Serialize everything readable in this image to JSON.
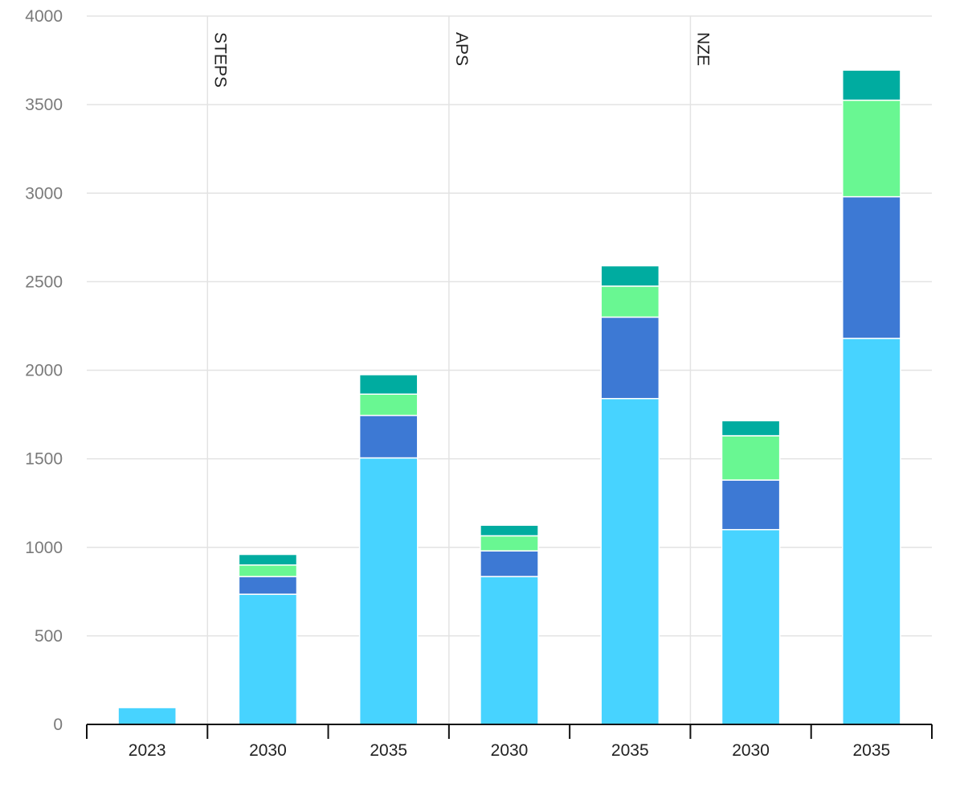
{
  "chart_data": {
    "type": "bar",
    "stacked": true,
    "categories": [
      "2023",
      "2030",
      "2035",
      "2030",
      "2035",
      "2030",
      "2035"
    ],
    "groups": [
      {
        "label": "",
        "categories": [
          "2023"
        ]
      },
      {
        "label": "STEPS",
        "categories": [
          "2030",
          "2035"
        ]
      },
      {
        "label": "APS",
        "categories": [
          "2030",
          "2035"
        ]
      },
      {
        "label": "NZE",
        "categories": [
          "2030",
          "2035"
        ]
      }
    ],
    "series": [
      {
        "color": "#47d3ff",
        "values": [
          95,
          735,
          1505,
          835,
          1840,
          1100,
          2180
        ]
      },
      {
        "color": "#3d79d4",
        "values": [
          0,
          100,
          240,
          145,
          460,
          280,
          800
        ]
      },
      {
        "color": "#69f792",
        "values": [
          0,
          65,
          120,
          85,
          175,
          250,
          545
        ]
      },
      {
        "color": "#00aca0",
        "values": [
          0,
          60,
          110,
          60,
          115,
          85,
          170
        ]
      }
    ],
    "ylim": [
      0,
      4000
    ],
    "yticks": [
      "0",
      "500",
      "1000",
      "1500",
      "2000",
      "2500",
      "3000",
      "3500",
      "4000"
    ],
    "grid": true
  }
}
